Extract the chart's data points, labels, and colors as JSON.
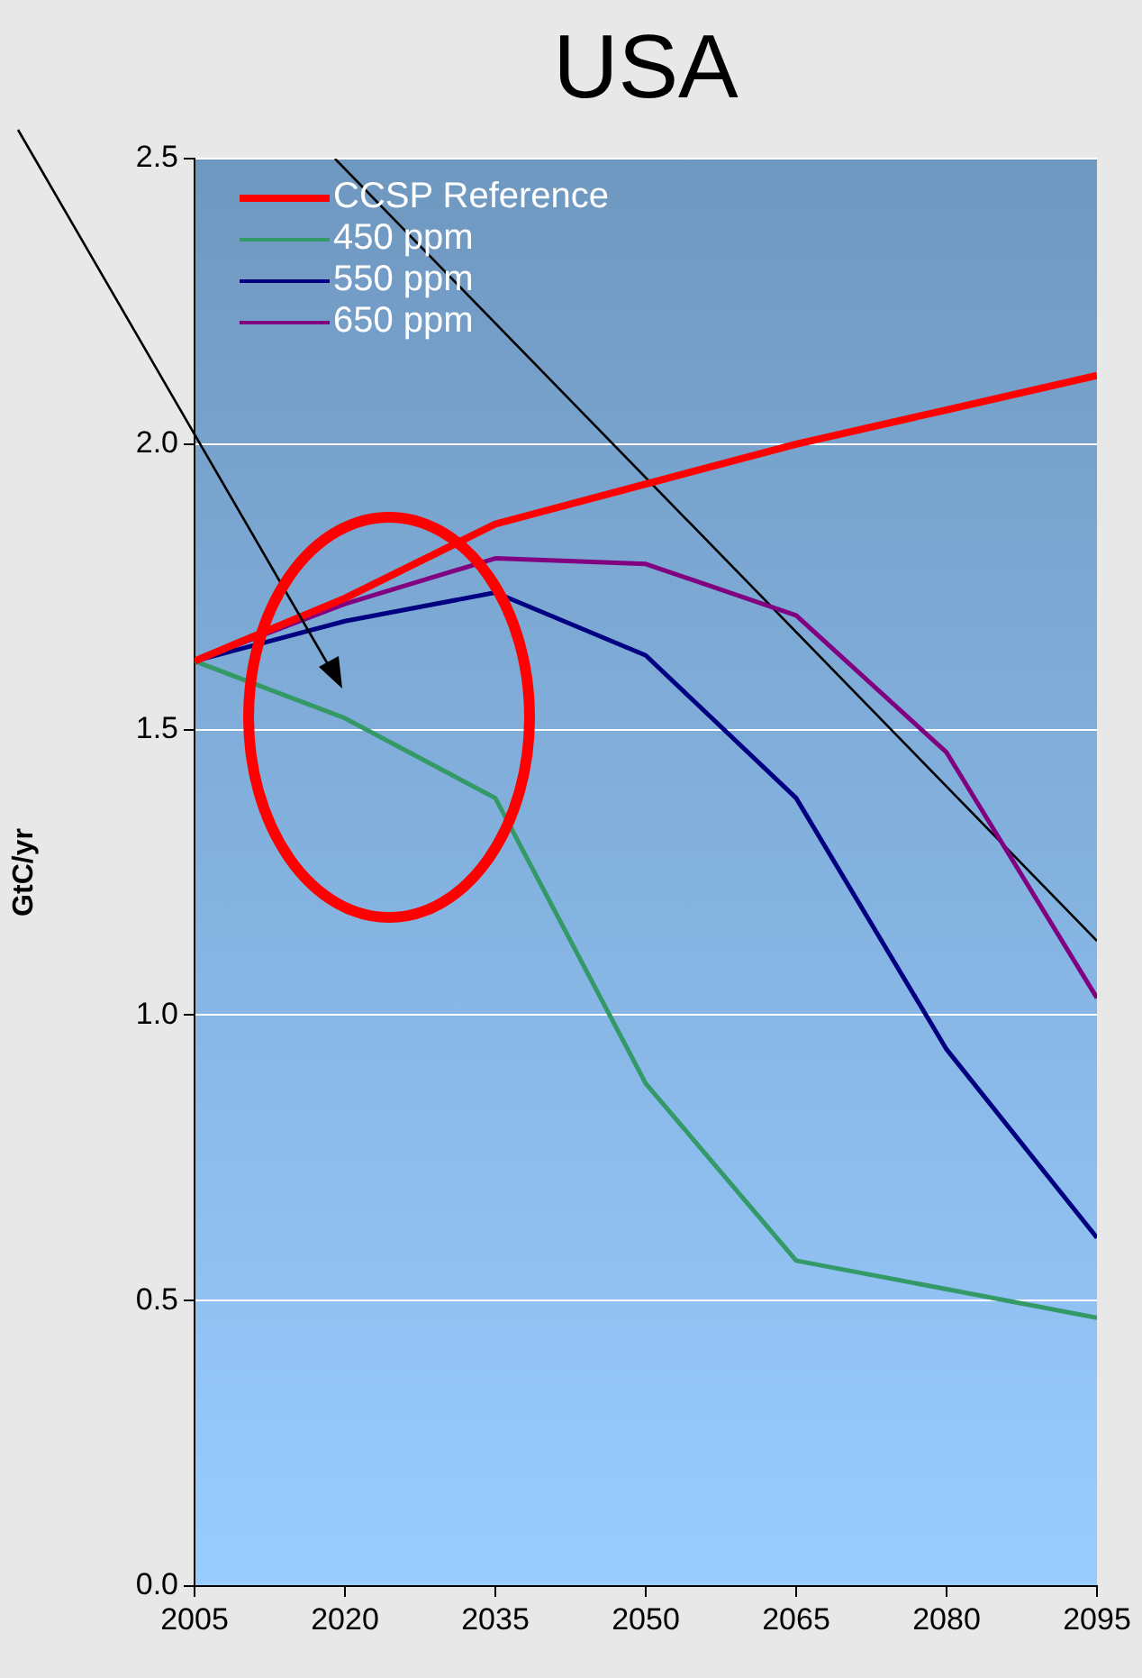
{
  "chart_data": {
    "type": "line",
    "title": "USA",
    "ylabel": "GtC/yr",
    "x": [
      2005,
      2020,
      2035,
      2050,
      2065,
      2080,
      2095
    ],
    "series": [
      {
        "name": "CCSP Reference",
        "color": "#ff0000",
        "values": [
          1.62,
          1.73,
          1.86,
          1.93,
          2.0,
          2.06,
          2.12
        ]
      },
      {
        "name": "450 ppm",
        "color": "#339966",
        "values": [
          1.62,
          1.52,
          1.38,
          0.88,
          0.57,
          0.52,
          0.47
        ]
      },
      {
        "name": "550 ppm",
        "color": "#000080",
        "values": [
          1.62,
          1.69,
          1.74,
          1.63,
          1.38,
          0.94,
          0.61
        ]
      },
      {
        "name": "650 ppm",
        "color": "#800080",
        "values": [
          1.62,
          1.72,
          1.8,
          1.79,
          1.7,
          1.46,
          1.03
        ]
      },
      {
        "type": "line",
        "color": "#000000",
        "x": [
          2019,
          2095
        ],
        "values": [
          2.5,
          1.13
        ]
      }
    ],
    "xlim": [
      2005,
      2095
    ],
    "xticks": [
      2005,
      2020,
      2035,
      2050,
      2065,
      2080,
      2095
    ],
    "ylim": [
      0,
      2.5
    ],
    "yticks": [
      {
        "value": 0,
        "label": "0.0"
      },
      {
        "value": 0.5,
        "label": "0.5"
      },
      {
        "value": 1,
        "label": "1.0"
      },
      {
        "value": 1.5,
        "label": "1.5"
      },
      {
        "value": 2,
        "label": "2.0"
      },
      {
        "value": 2.5,
        "label": "2.5"
      }
    ],
    "grid": "y",
    "legend": "top left",
    "marker": "none",
    "line_style": "solid"
  }
}
